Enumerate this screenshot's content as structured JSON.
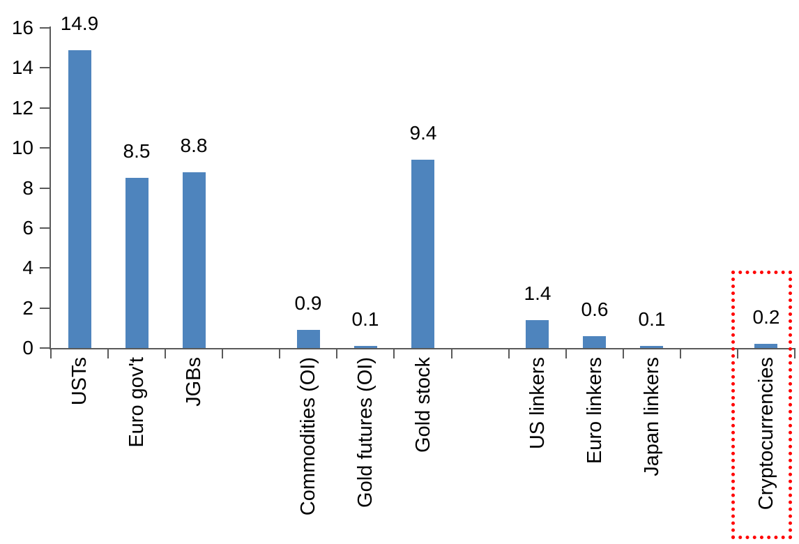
{
  "chart_data": {
    "type": "bar",
    "title": "",
    "xlabel": "",
    "ylabel": "",
    "categories": [
      "USTs",
      "Euro gov't",
      "JGBs",
      "",
      "Commodities (OI)",
      "Gold futures (OI)",
      "Gold stock",
      "",
      "US linkers",
      "Euro linkers",
      "Japan linkers",
      "",
      "Cryptocurrencies"
    ],
    "values": [
      14.9,
      8.5,
      8.8,
      null,
      0.9,
      0.1,
      9.4,
      null,
      1.4,
      0.6,
      0.1,
      null,
      0.2
    ],
    "data_labels": [
      "14.9",
      "8.5",
      "8.8",
      "",
      "0.9",
      "0.1",
      "9.4",
      "",
      "1.4",
      "0.6",
      "0.1",
      "",
      "0.2"
    ],
    "ylim": [
      0,
      16
    ],
    "yticks": [
      0,
      2,
      4,
      6,
      8,
      10,
      12,
      14,
      16
    ],
    "grid": "off",
    "legend": "none",
    "bar_color": "#4E84BD",
    "axis_color": "#595959",
    "text_color": "#000000",
    "highlight": {
      "category": "Cryptocurrencies",
      "style": "dotted-box",
      "color": "#FF0000"
    }
  }
}
